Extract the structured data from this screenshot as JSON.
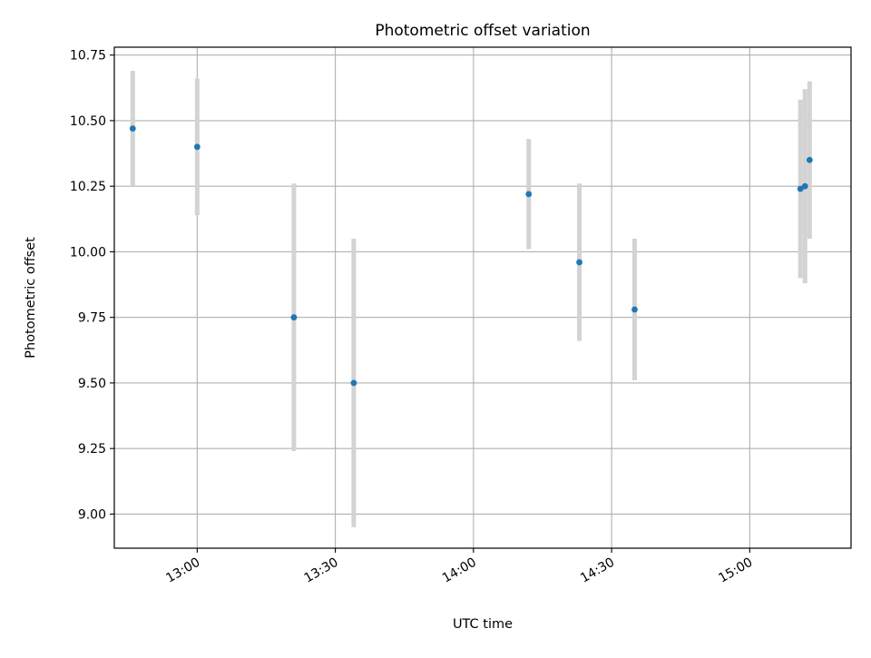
{
  "chart_data": {
    "type": "scatter",
    "title": "Photometric offset variation",
    "xlabel": "UTC time",
    "ylabel": "Photometric offset",
    "x_axis_type": "time",
    "xlim": [
      "12:42",
      "15:22"
    ],
    "ylim": [
      8.87,
      10.78
    ],
    "x_ticks": [
      "13:00",
      "13:30",
      "14:00",
      "14:30",
      "15:00"
    ],
    "y_ticks": [
      9.0,
      9.25,
      9.5,
      9.75,
      10.0,
      10.25,
      10.5,
      10.75
    ],
    "y_tick_labels": [
      "9.00",
      "9.25",
      "9.50",
      "9.75",
      "10.00",
      "10.25",
      "10.50",
      "10.75"
    ],
    "grid": true,
    "x_tick_rotation_deg": 30,
    "point_color": "#1f77b4",
    "errorbar_color": "#d3d3d3",
    "points": [
      {
        "x": "12:46",
        "y": 10.47,
        "err": 0.22
      },
      {
        "x": "13:00",
        "y": 10.4,
        "err": 0.26
      },
      {
        "x": "13:21",
        "y": 9.75,
        "err": 0.51
      },
      {
        "x": "13:34",
        "y": 9.5,
        "err": 0.55
      },
      {
        "x": "14:12",
        "y": 10.22,
        "err": 0.21
      },
      {
        "x": "14:23",
        "y": 9.96,
        "err": 0.3
      },
      {
        "x": "14:35",
        "y": 9.78,
        "err": 0.27
      },
      {
        "x": "15:11",
        "y": 10.24,
        "err": 0.34
      },
      {
        "x": "15:12",
        "y": 10.25,
        "err": 0.37
      },
      {
        "x": "15:13",
        "y": 10.35,
        "err": 0.3
      }
    ]
  }
}
